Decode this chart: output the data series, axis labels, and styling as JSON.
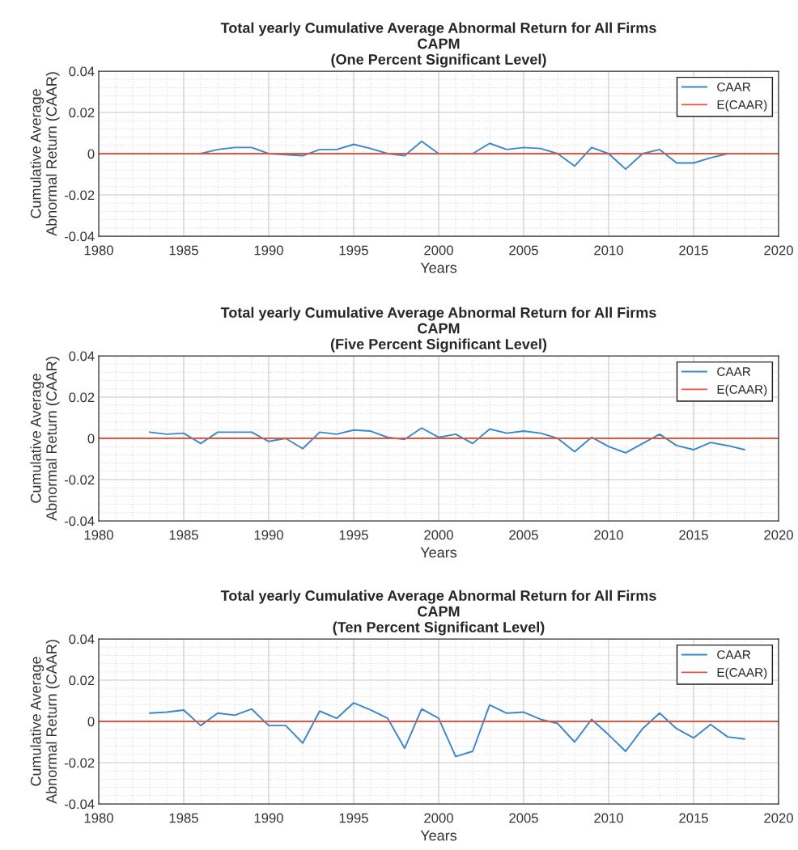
{
  "chart_data": [
    {
      "type": "line",
      "title": "Total yearly Cumulative Average Abnormal Return for All Firms\nCAPM\n(One Percent Significant Level)",
      "xlabel": "Years",
      "ylabel": "Cumulative Average\nAbnormal Return (CAAR)",
      "xlim": [
        1980,
        2020
      ],
      "xticks": [
        1980,
        1985,
        1990,
        1995,
        2000,
        2005,
        2010,
        2015,
        2020
      ],
      "ylim": [
        -0.04,
        0.04
      ],
      "yticks": [
        -0.04,
        -0.02,
        0,
        0.02,
        0.04
      ],
      "grid": true,
      "legend": "top right",
      "series": [
        {
          "name": "CAAR",
          "color": "#3b87c8",
          "x": [
            1985,
            1986,
            1987,
            1988,
            1989,
            1990,
            1991,
            1992,
            1993,
            1994,
            1995,
            1996,
            1997,
            1998,
            1999,
            2000,
            2001,
            2002,
            2003,
            2004,
            2005,
            2006,
            2007,
            2008,
            2009,
            2010,
            2011,
            2012,
            2013,
            2014,
            2015,
            2016,
            2017
          ],
          "values": [
            0,
            0,
            0.002,
            0.003,
            0.003,
            0,
            -0.0005,
            -0.001,
            0.002,
            0.002,
            0.0045,
            0.0025,
            0,
            -0.001,
            0.006,
            0,
            0,
            0,
            0.005,
            0.002,
            0.003,
            0.0025,
            0,
            -0.006,
            0.003,
            0,
            -0.0075,
            0,
            0.002,
            -0.0045,
            -0.0045,
            -0.002,
            0
          ]
        },
        {
          "name": "E(CAAR)",
          "color": "#e8553f",
          "x": [
            1980,
            2020
          ],
          "values": [
            0,
            0
          ]
        }
      ]
    },
    {
      "type": "line",
      "title": "Total yearly Cumulative Average Abnormal Return for All Firms\nCAPM\n(Five Percent Significant Level)",
      "xlabel": "Years",
      "ylabel": "Cumulative Average\nAbnormal Return (CAAR)",
      "xlim": [
        1980,
        2020
      ],
      "xticks": [
        1980,
        1985,
        1990,
        1995,
        2000,
        2005,
        2010,
        2015,
        2020
      ],
      "ylim": [
        -0.04,
        0.04
      ],
      "yticks": [
        -0.04,
        -0.02,
        0,
        0.02,
        0.04
      ],
      "grid": true,
      "legend": "top right",
      "series": [
        {
          "name": "CAAR",
          "color": "#3b87c8",
          "x": [
            1983,
            1984,
            1985,
            1986,
            1987,
            1988,
            1989,
            1990,
            1991,
            1992,
            1993,
            1994,
            1995,
            1996,
            1997,
            1998,
            1999,
            2000,
            2001,
            2002,
            2003,
            2004,
            2005,
            2006,
            2007,
            2008,
            2009,
            2010,
            2011,
            2012,
            2013,
            2014,
            2015,
            2016,
            2017,
            2018
          ],
          "values": [
            0.003,
            0.002,
            0.0025,
            -0.0025,
            0.003,
            0.003,
            0.003,
            -0.0015,
            0,
            -0.005,
            0.003,
            0.002,
            0.004,
            0.0035,
            0.0005,
            -0.0005,
            0.005,
            0.0005,
            0.002,
            -0.0025,
            0.0045,
            0.0025,
            0.0035,
            0.0025,
            0,
            -0.0065,
            0.0005,
            -0.004,
            -0.007,
            -0.0025,
            0.002,
            -0.0035,
            -0.0055,
            -0.002,
            -0.0035,
            -0.0055
          ]
        },
        {
          "name": "E(CAAR)",
          "color": "#e8553f",
          "x": [
            1980,
            2020
          ],
          "values": [
            0,
            0
          ]
        }
      ]
    },
    {
      "type": "line",
      "title": "Total yearly Cumulative Average Abnormal Return for All Firms\nCAPM\n(Ten Percent Significant Level)",
      "xlabel": "Years",
      "ylabel": "Cumulative Average\nAbnormal Return (CAAR)",
      "xlim": [
        1980,
        2020
      ],
      "xticks": [
        1980,
        1985,
        1990,
        1995,
        2000,
        2005,
        2010,
        2015,
        2020
      ],
      "ylim": [
        -0.04,
        0.04
      ],
      "yticks": [
        -0.04,
        -0.02,
        0,
        0.02,
        0.04
      ],
      "grid": true,
      "legend": "top right",
      "series": [
        {
          "name": "CAAR",
          "color": "#3b87c8",
          "x": [
            1983,
            1984,
            1985,
            1986,
            1987,
            1988,
            1989,
            1990,
            1991,
            1992,
            1993,
            1994,
            1995,
            1996,
            1997,
            1998,
            1999,
            2000,
            2001,
            2002,
            2003,
            2004,
            2005,
            2006,
            2007,
            2008,
            2009,
            2010,
            2011,
            2012,
            2013,
            2014,
            2015,
            2016,
            2017,
            2018
          ],
          "values": [
            0.004,
            0.0045,
            0.0055,
            -0.002,
            0.004,
            0.003,
            0.006,
            -0.002,
            -0.002,
            -0.0105,
            0.005,
            0.0015,
            0.009,
            0.0055,
            0.0015,
            -0.013,
            0.006,
            0.0015,
            -0.017,
            -0.0145,
            0.008,
            0.004,
            0.0045,
            0.001,
            -0.001,
            -0.01,
            0.001,
            -0.0065,
            -0.0145,
            -0.0035,
            0.004,
            -0.0035,
            -0.008,
            -0.0015,
            -0.0075,
            -0.0085
          ]
        },
        {
          "name": "E(CAAR)",
          "color": "#e8553f",
          "x": [
            1980,
            2020
          ],
          "values": [
            0,
            0
          ]
        }
      ]
    }
  ]
}
